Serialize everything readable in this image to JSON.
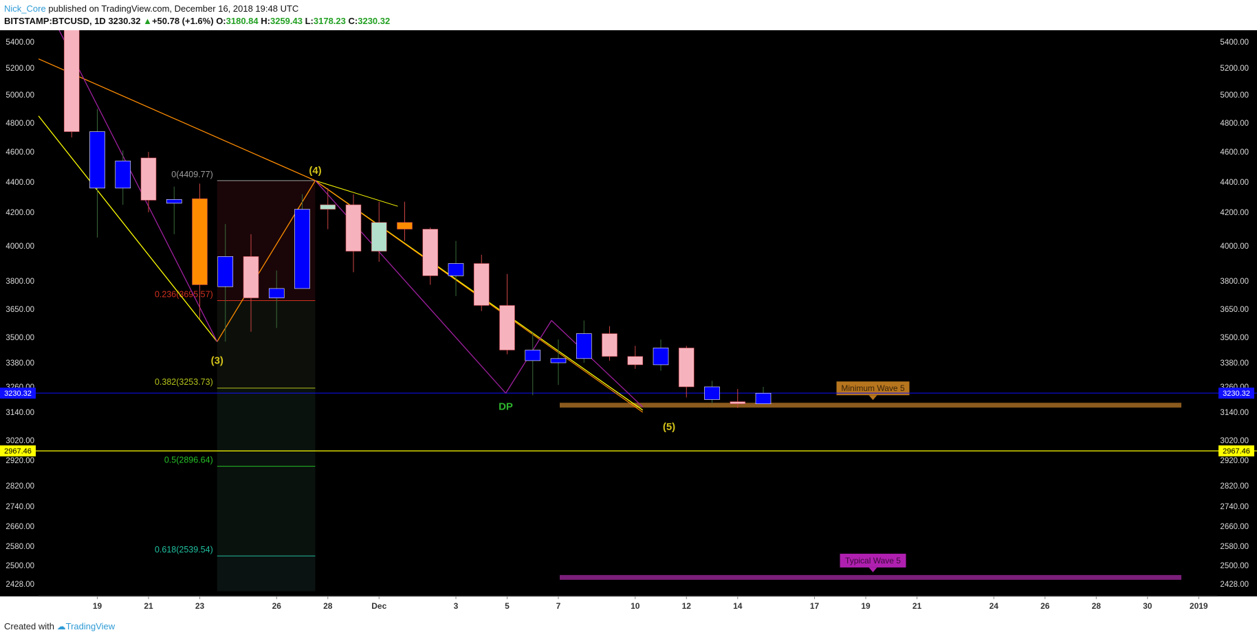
{
  "header": {
    "author": "Nick_Core",
    "published_text": "published on TradingView.com, December 16, 2018 19:48 UTC",
    "symbol": "BITSTAMP:BTCUSD, 1D",
    "last": "3230.32",
    "change_arrow": "▲",
    "change": "+50.78 (+1.6%)",
    "o_label": "O:",
    "o": "3180.84",
    "h_label": "H:",
    "h": "3259.43",
    "l_label": "L:",
    "l": "3178.23",
    "c_label": "C:",
    "c": "3230.32"
  },
  "footer": {
    "created_with": "Created with",
    "brand": "TradingView"
  },
  "colors": {
    "background": "#000000",
    "bear": "#f7b3bd",
    "bull": "#0000ff",
    "orange": "#ff8c00",
    "mint": "#b2e0cc",
    "yellow": "#ffff00",
    "purple": "#a020a0",
    "fib": "#e8a08a",
    "price_line": "#1010ff",
    "wave_label": "#d4c31a",
    "dp": "#2db52d"
  },
  "chart_data": {
    "type": "candlestick",
    "y_ticks": [
      "2428.00",
      "2500.00",
      "2580.00",
      "2660.00",
      "2740.00",
      "2820.00",
      "2920.00",
      "3020.00",
      "3140.00",
      "3260.00",
      "3380.00",
      "3500.00",
      "3650.00",
      "3800.00",
      "4000.00",
      "4200.00",
      "4400.00",
      "4600.00",
      "4800.00",
      "5000.00",
      "5200.00",
      "5400.00"
    ],
    "x_ticks": [
      "19",
      "21",
      "23",
      "26",
      "28",
      "Dec",
      "3",
      "5",
      "7",
      "10",
      "12",
      "14",
      "17",
      "19",
      "21",
      "24",
      "26",
      "28",
      "30",
      "2019"
    ],
    "last_price_label": "3230.32",
    "hline_label": "2967.46",
    "hline_value": 2967.46,
    "candles": [
      {
        "date": "Nov 18",
        "o": 5570,
        "h": 5620,
        "l": 4700,
        "c": 4740,
        "color": "bear"
      },
      {
        "date": "Nov 19",
        "o": 4740,
        "h": 4900,
        "l": 4050,
        "c": 4360,
        "color": "bull"
      },
      {
        "date": "Nov 20",
        "o": 4360,
        "h": 4610,
        "l": 4250,
        "c": 4540,
        "color": "bull"
      },
      {
        "date": "Nov 21",
        "o": 4560,
        "h": 4600,
        "l": 4200,
        "c": 4280,
        "color": "bear"
      },
      {
        "date": "Nov 22",
        "o": 4260,
        "h": 4370,
        "l": 4070,
        "c": 4285,
        "color": "bull"
      },
      {
        "date": "Nov 23",
        "o": 4290,
        "h": 4390,
        "l": 3600,
        "c": 3780,
        "color": "orange"
      },
      {
        "date": "Nov 24",
        "o": 3770,
        "h": 4130,
        "l": 3480,
        "c": 3940,
        "color": "bull"
      },
      {
        "date": "Nov 25",
        "o": 3940,
        "h": 4070,
        "l": 3530,
        "c": 3710,
        "color": "bear"
      },
      {
        "date": "Nov 26",
        "o": 3710,
        "h": 3860,
        "l": 3550,
        "c": 3760,
        "color": "bull"
      },
      {
        "date": "Nov 27",
        "o": 3760,
        "h": 4320,
        "l": 3760,
        "c": 4220,
        "color": "bull"
      },
      {
        "date": "Nov 28",
        "o": 4220,
        "h": 4360,
        "l": 4100,
        "c": 4250,
        "color": "mint"
      },
      {
        "date": "Nov 29",
        "o": 4250,
        "h": 4320,
        "l": 3850,
        "c": 3970,
        "color": "bear"
      },
      {
        "date": "Nov 30",
        "o": 3970,
        "h": 4270,
        "l": 3910,
        "c": 4140,
        "color": "mint"
      },
      {
        "date": "Dec 1",
        "o": 4140,
        "h": 4270,
        "l": 4030,
        "c": 4100,
        "color": "orange"
      },
      {
        "date": "Dec 2",
        "o": 4100,
        "h": 4110,
        "l": 3780,
        "c": 3830,
        "color": "bear"
      },
      {
        "date": "Dec 3",
        "o": 3830,
        "h": 4030,
        "l": 3720,
        "c": 3900,
        "color": "bull"
      },
      {
        "date": "Dec 4",
        "o": 3900,
        "h": 3950,
        "l": 3640,
        "c": 3670,
        "color": "bear"
      },
      {
        "date": "Dec 5",
        "o": 3670,
        "h": 3840,
        "l": 3420,
        "c": 3440,
        "color": "bear"
      },
      {
        "date": "Dec 6",
        "o": 3440,
        "h": 3530,
        "l": 3220,
        "c": 3390,
        "color": "bull"
      },
      {
        "date": "Dec 7",
        "o": 3380,
        "h": 3490,
        "l": 3270,
        "c": 3400,
        "color": "bull"
      },
      {
        "date": "Dec 8",
        "o": 3400,
        "h": 3590,
        "l": 3380,
        "c": 3520,
        "color": "bull"
      },
      {
        "date": "Dec 9",
        "o": 3520,
        "h": 3560,
        "l": 3390,
        "c": 3410,
        "color": "bear"
      },
      {
        "date": "Dec 10",
        "o": 3410,
        "h": 3460,
        "l": 3350,
        "c": 3370,
        "color": "bear"
      },
      {
        "date": "Dec 11",
        "o": 3370,
        "h": 3490,
        "l": 3340,
        "c": 3450,
        "color": "bull"
      },
      {
        "date": "Dec 12",
        "o": 3450,
        "h": 3460,
        "l": 3210,
        "c": 3260,
        "color": "bear"
      },
      {
        "date": "Dec 13",
        "o": 3260,
        "h": 3290,
        "l": 3180,
        "c": 3200,
        "color": "bull"
      },
      {
        "date": "Dec 14",
        "o": 3190,
        "h": 3250,
        "l": 3160,
        "c": 3180,
        "color": "bear"
      },
      {
        "date": "Dec 15",
        "o": 3180,
        "h": 3260,
        "l": 3178,
        "c": 3230,
        "color": "bull"
      }
    ],
    "fib_labels": [
      {
        "text": "0(4409.77)",
        "value": 4409.77,
        "color": "#9e9e9e"
      },
      {
        "text": "0.236(3695.57)",
        "value": 3695.57,
        "color": "#d03020"
      },
      {
        "text": "0.382(3253.73)",
        "value": 3253.73,
        "color": "#b5c21a"
      },
      {
        "text": "0.5(2896.64)",
        "value": 2896.64,
        "color": "#25c025"
      },
      {
        "text": "0.618(2539.54)",
        "value": 2539.54,
        "color": "#20c0a0"
      }
    ],
    "wave_labels": [
      "(3)",
      "(4)",
      "(5)"
    ],
    "dp_label": "DP",
    "zones": [
      {
        "label": "Minimum Wave 5",
        "value": 3175,
        "color": "#8a5a1e",
        "label_bg": "#b7761e"
      },
      {
        "label": "Typical Wave 5",
        "value": 2455,
        "color": "#7a1f7a",
        "label_bg": "#b020b0"
      }
    ]
  }
}
